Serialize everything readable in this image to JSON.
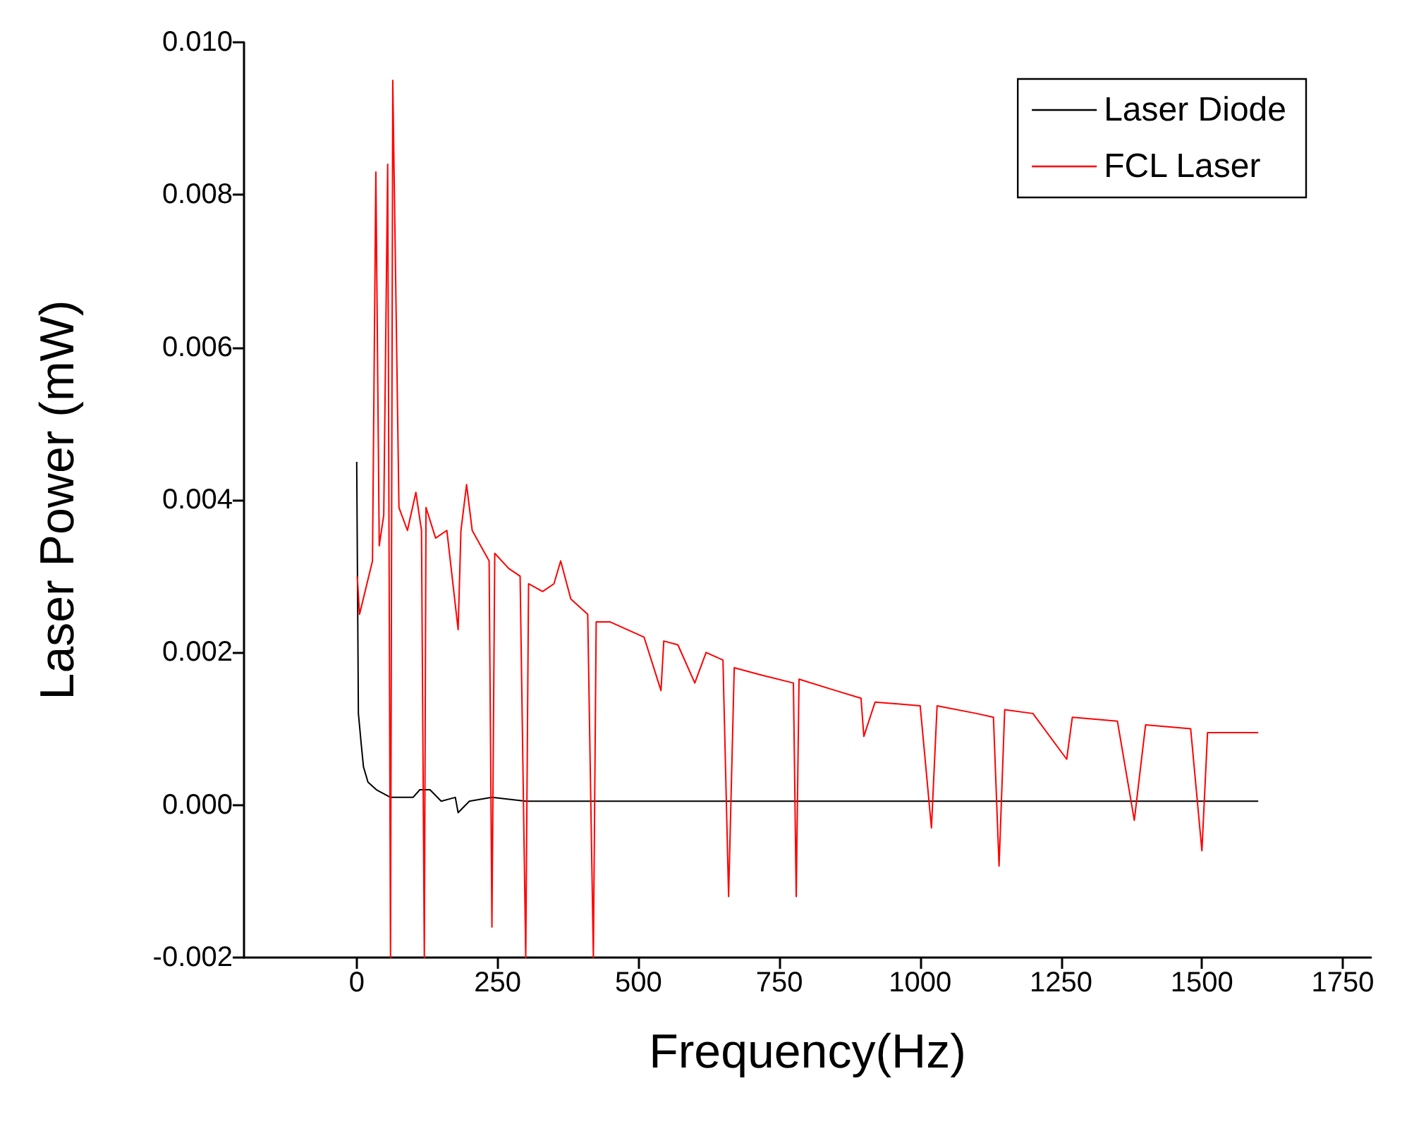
{
  "chart_data": {
    "type": "line",
    "xlabel": "Frequency(Hz)",
    "ylabel": "Laser Power (mW)",
    "xlim": [
      -200,
      1800
    ],
    "ylim": [
      -0.002,
      0.01
    ],
    "xticks": [
      0,
      250,
      500,
      750,
      1000,
      1250,
      1500,
      1750
    ],
    "yticks": [
      {
        "value": -0.002,
        "label": "-0.002"
      },
      {
        "value": 0,
        "label": "0.000"
      },
      {
        "value": 0.002,
        "label": "0.002"
      },
      {
        "value": 0.004,
        "label": "0.004"
      },
      {
        "value": 0.006,
        "label": "0.006"
      },
      {
        "value": 0.008,
        "label": "0.008"
      },
      {
        "value": 0.01,
        "label": "0.010"
      }
    ],
    "grid": false,
    "legend": "top right",
    "marker": "none",
    "line_style": "solid",
    "series": [
      {
        "name": "Laser Diode",
        "color": "#000000",
        "x": [
          0,
          1,
          3,
          8,
          12,
          20,
          35,
          60,
          100,
          112,
          120,
          130,
          150,
          175,
          180,
          200,
          240,
          300,
          400,
          500,
          600,
          700,
          800,
          900,
          1000,
          1100,
          1200,
          1300,
          1400,
          1500,
          1600
        ],
        "values": [
          0.0045,
          0.0045,
          0.0012,
          0.0008,
          0.0005,
          0.0003,
          0.0002,
          0.0001,
          0.0001,
          0.0002,
          0.0002,
          0.0002,
          5e-05,
          0.0001,
          -0.0001,
          5e-05,
          0.0001,
          5e-05,
          5e-05,
          5e-05,
          5e-05,
          5e-05,
          5e-05,
          5e-05,
          5e-05,
          5e-05,
          5e-05,
          5e-05,
          5e-05,
          5e-05,
          5e-05
        ]
      },
      {
        "name": "FCL Laser",
        "color": "#ff0000",
        "x": [
          1,
          5,
          28,
          34,
          40,
          48,
          55,
          60,
          64,
          75,
          90,
          105,
          115,
          120,
          123,
          140,
          160,
          180,
          185,
          195,
          205,
          220,
          235,
          240,
          245,
          270,
          290,
          300,
          305,
          330,
          350,
          362,
          380,
          410,
          420,
          425,
          450,
          480,
          510,
          540,
          545,
          570,
          600,
          620,
          650,
          660,
          670,
          720,
          775,
          780,
          785,
          850,
          895,
          900,
          920,
          1000,
          1020,
          1030,
          1100,
          1130,
          1140,
          1150,
          1200,
          1260,
          1270,
          1350,
          1380,
          1400,
          1480,
          1500,
          1510,
          1600
        ],
        "values": [
          0.003,
          0.0025,
          0.0032,
          0.0083,
          0.0034,
          0.0038,
          0.0084,
          -0.002,
          0.0095,
          0.0039,
          0.0036,
          0.0041,
          0.0036,
          -0.002,
          0.0039,
          0.0035,
          0.0036,
          0.0023,
          0.0036,
          0.0042,
          0.0036,
          0.0034,
          0.0032,
          -0.0016,
          0.0033,
          0.0031,
          0.003,
          -0.002,
          0.0029,
          0.0028,
          0.0029,
          0.0032,
          0.0027,
          0.0025,
          -0.002,
          0.0024,
          0.0024,
          0.0023,
          0.0022,
          0.0015,
          0.00215,
          0.0021,
          0.0016,
          0.002,
          0.0019,
          -0.0012,
          0.0018,
          0.0017,
          0.0016,
          -0.0012,
          0.00165,
          0.0015,
          0.0014,
          0.0009,
          0.00135,
          0.0013,
          -0.0003,
          0.0013,
          0.0012,
          0.00115,
          -0.0008,
          0.00125,
          0.0012,
          0.0006,
          0.00115,
          0.0011,
          -0.0002,
          0.00105,
          0.001,
          -0.0006,
          0.00095,
          0.00095
        ]
      }
    ]
  }
}
